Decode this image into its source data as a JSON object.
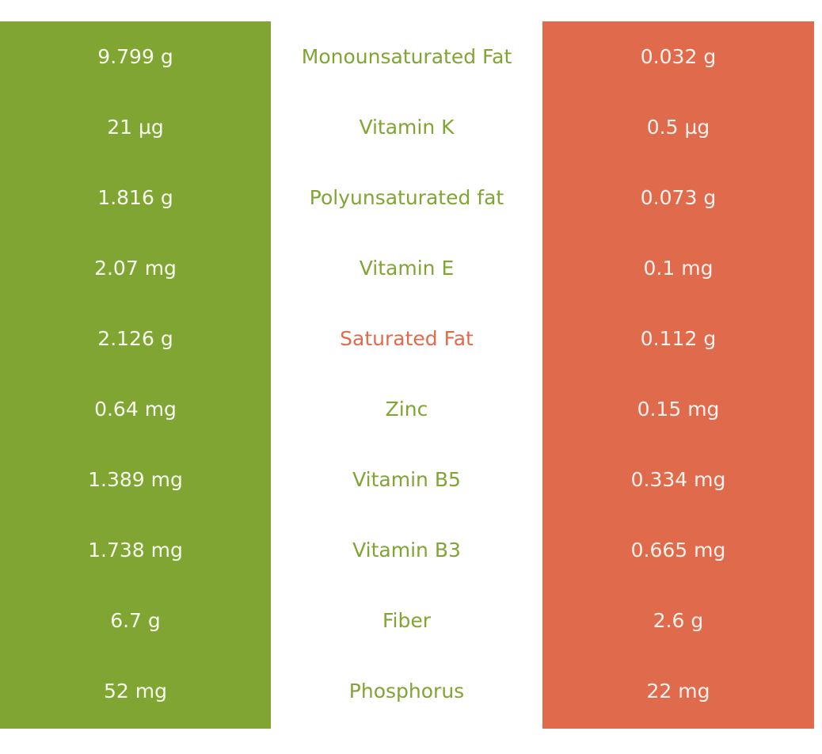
{
  "colors": {
    "left_column": "#80a532",
    "right_column": "#e06b4c",
    "nutrient_label_good": "#80a532",
    "nutrient_label_bad": "#e06b4c",
    "background": "#ffffff"
  },
  "rows": [
    {
      "left": "9.799 g",
      "nutrient": "Monounsaturated Fat",
      "right": "0.032 g",
      "label_color": "good"
    },
    {
      "left": "21 µg",
      "nutrient": "Vitamin K",
      "right": "0.5 µg",
      "label_color": "good"
    },
    {
      "left": "1.816 g",
      "nutrient": "Polyunsaturated fat",
      "right": "0.073 g",
      "label_color": "good"
    },
    {
      "left": "2.07 mg",
      "nutrient": "Vitamin E",
      "right": "0.1 mg",
      "label_color": "good"
    },
    {
      "left": "2.126 g",
      "nutrient": "Saturated Fat",
      "right": "0.112 g",
      "label_color": "bad"
    },
    {
      "left": "0.64 mg",
      "nutrient": "Zinc",
      "right": "0.15 mg",
      "label_color": "good"
    },
    {
      "left": "1.389 mg",
      "nutrient": "Vitamin B5",
      "right": "0.334 mg",
      "label_color": "good"
    },
    {
      "left": "1.738 mg",
      "nutrient": "Vitamin B3",
      "right": "0.665 mg",
      "label_color": "good"
    },
    {
      "left": "6.7 g",
      "nutrient": "Fiber",
      "right": "2.6 g",
      "label_color": "good"
    },
    {
      "left": "52 mg",
      "nutrient": "Phosphorus",
      "right": "22 mg",
      "label_color": "good"
    }
  ]
}
